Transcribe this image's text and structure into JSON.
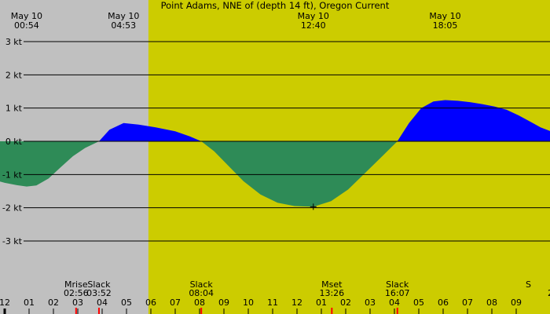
{
  "chart_data": {
    "type": "area",
    "title": "Point Adams, NNE of (depth 14 ft), Oregon Current",
    "xlabel": "",
    "ylabel": "",
    "unit": "kt",
    "ylim": [
      -4.1,
      4.2
    ],
    "xlim_hours": [
      -1.2,
      33.3
    ],
    "y_ticks": [
      3,
      2,
      1,
      0,
      -1,
      -2,
      -3
    ],
    "y_tick_labels": [
      "3 kt",
      "2 kt",
      "1 kt",
      "0 kt",
      "-1 kt",
      "-2 kt",
      "-3 kt"
    ],
    "hour_tick_labels": [
      "11",
      "12",
      "01",
      "02",
      "03",
      "04",
      "05",
      "06",
      "07",
      "08",
      "09",
      "10",
      "11",
      "12",
      "01",
      "02",
      "03",
      "04",
      "05",
      "06",
      "07",
      "08",
      "09"
    ],
    "last_label_partial": "2",
    "daylight_hours": [
      5.9,
      27.4
    ],
    "events": [
      {
        "date": "May 10",
        "time": "00:54",
        "hour": 0.9
      },
      {
        "date": "May 10",
        "time": "04:53",
        "hour": 4.88
      },
      {
        "date": "May 10",
        "time": "12:40",
        "hour": 12.67
      },
      {
        "date": "May 10",
        "time": "18:05",
        "hour": 18.08
      }
    ],
    "marker": {
      "hour": 12.67,
      "value": -1.97
    },
    "bottom_events": [
      {
        "label": "Mrise",
        "time": "02:56",
        "hour": 2.93
      },
      {
        "label": "Slack",
        "time": "03:52",
        "hour": 3.87
      },
      {
        "label": "Slack",
        "time": "08:04",
        "hour": 8.07
      },
      {
        "label": "Mset",
        "time": "13:26",
        "hour": 13.43
      },
      {
        "label": "Slack",
        "time": "16:07",
        "hour": 16.12
      },
      {
        "label": "S",
        "time": "",
        "hour": 21.5
      }
    ],
    "colors": {
      "night": "#c0c0c0",
      "day": "#cccc00",
      "flood": "#0000ff",
      "ebb": "#2e8b57",
      "grid": "#000000",
      "tick_red": "#ff0000",
      "tick_black": "#000000"
    },
    "series": [
      {
        "x": [
          -1.2,
          -0.5,
          0.0,
          0.5,
          0.9,
          1.3,
          1.8,
          2.3,
          2.8,
          3.3,
          3.87,
          4.3,
          4.88,
          5.5,
          6.2,
          7.0,
          7.6,
          8.07,
          8.6,
          9.2,
          9.8,
          10.5,
          11.2,
          11.9,
          12.67,
          13.4,
          14.1,
          14.8,
          15.5,
          16.12,
          16.6,
          17.1,
          17.6,
          18.08,
          18.6,
          19.1,
          19.6,
          20.1,
          20.6,
          21.1,
          21.6,
          22.0,
          22.6,
          23.0,
          23.4
        ],
        "values": [
          -0.55,
          -1.15,
          -1.25,
          -1.32,
          -1.36,
          -1.33,
          -1.12,
          -0.78,
          -0.45,
          -0.2,
          0.0,
          0.35,
          0.55,
          0.5,
          0.42,
          0.3,
          0.15,
          0.0,
          -0.3,
          -0.75,
          -1.2,
          -1.6,
          -1.85,
          -1.95,
          -1.97,
          -1.8,
          -1.45,
          -0.95,
          -0.45,
          0.0,
          0.55,
          1.0,
          1.2,
          1.24,
          1.22,
          1.18,
          1.12,
          1.05,
          0.95,
          0.78,
          0.58,
          0.42,
          0.25,
          0.05,
          -0.1
        ]
      }
    ]
  }
}
